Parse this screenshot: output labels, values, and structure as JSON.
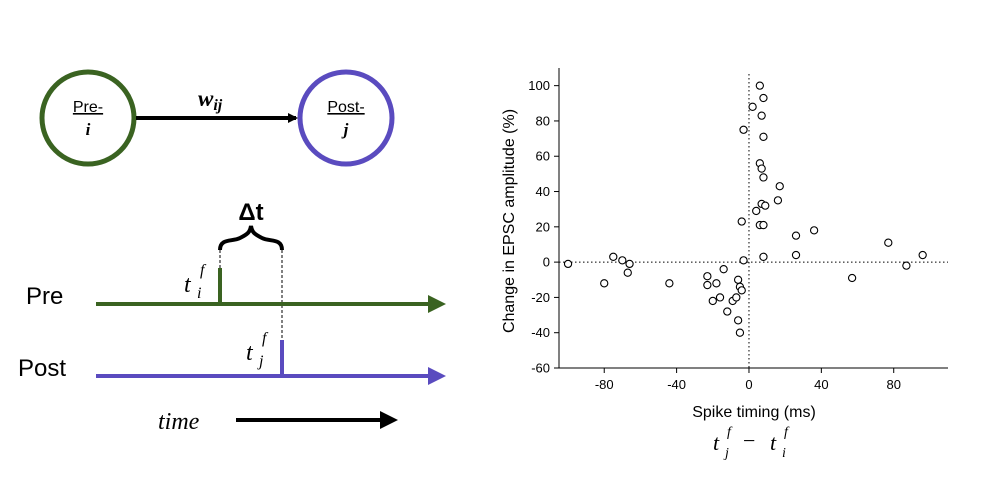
{
  "diagram": {
    "pre_neuron": {
      "label": "Pre-",
      "index": "i",
      "color": "#3a6321"
    },
    "post_neuron": {
      "label": "Post-",
      "index": "j",
      "color": "#5a4bbf"
    },
    "weight": {
      "symbol": "w",
      "subscript": "ij"
    },
    "delta": "Δt",
    "pre_train_label": "Pre",
    "post_train_label": "Post",
    "pre_spike": {
      "base": "t",
      "sub": "i",
      "sup": "f"
    },
    "post_spike": {
      "base": "t",
      "sub": "j",
      "sup": "f"
    },
    "time_label": "time"
  },
  "chart_data": {
    "type": "scatter",
    "title": "",
    "xlabel": "Spike timing (ms)",
    "ylabel": "Change in EPSC amplitude (%)",
    "xlabel_formula": {
      "a": "t",
      "a_sub": "j",
      "a_sup": "f",
      "op": "−",
      "b": "t",
      "b_sub": "i",
      "b_sup": "f"
    },
    "xlim": [
      -105,
      110
    ],
    "ylim": [
      -60,
      110
    ],
    "xticks": [
      -80,
      -40,
      0,
      40,
      80
    ],
    "yticks": [
      -60,
      -40,
      -20,
      0,
      20,
      40,
      60,
      80,
      100
    ],
    "grid": false,
    "zero_lines": "dotted",
    "points": [
      [
        -100,
        -1
      ],
      [
        -80,
        -12
      ],
      [
        -75,
        3
      ],
      [
        -70,
        1
      ],
      [
        -67,
        -6
      ],
      [
        -66,
        -1
      ],
      [
        -44,
        -12
      ],
      [
        -23,
        -8
      ],
      [
        -23,
        -13
      ],
      [
        -18,
        -12
      ],
      [
        -20,
        -22
      ],
      [
        -16,
        -20
      ],
      [
        -14,
        -4
      ],
      [
        -12,
        -28
      ],
      [
        -9,
        -22
      ],
      [
        -7,
        -20
      ],
      [
        -6,
        -10
      ],
      [
        -5,
        -14
      ],
      [
        -4,
        -16
      ],
      [
        -6,
        -33
      ],
      [
        -5,
        -40
      ],
      [
        -3,
        1
      ],
      [
        -3,
        75
      ],
      [
        -4,
        23
      ],
      [
        2,
        88
      ],
      [
        6,
        100
      ],
      [
        8,
        93
      ],
      [
        7,
        83
      ],
      [
        8,
        71
      ],
      [
        6,
        56
      ],
      [
        7,
        53
      ],
      [
        8,
        48
      ],
      [
        7,
        33
      ],
      [
        9,
        32
      ],
      [
        4,
        29
      ],
      [
        6,
        21
      ],
      [
        8,
        21
      ],
      [
        8,
        3
      ],
      [
        16,
        35
      ],
      [
        17,
        43
      ],
      [
        26,
        15
      ],
      [
        26,
        4
      ],
      [
        36,
        18
      ],
      [
        57,
        -9
      ],
      [
        77,
        11
      ],
      [
        87,
        -2
      ],
      [
        96,
        4
      ]
    ]
  }
}
